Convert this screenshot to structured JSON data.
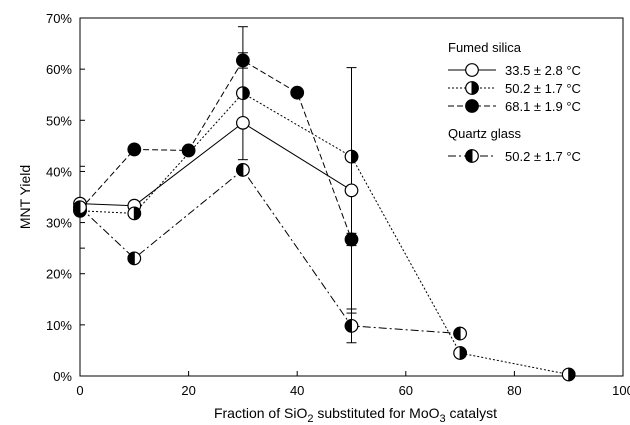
{
  "chart_data": {
    "type": "line",
    "xlabel_parts": [
      "Fraction of SiO",
      "2",
      " substituted for MoO",
      "3",
      " catalyst"
    ],
    "ylabel": "MNT Yield",
    "xlim": [
      0,
      100
    ],
    "ylim": [
      0,
      70
    ],
    "x_ticks": [
      0,
      20,
      40,
      60,
      80,
      100
    ],
    "x_tick_labels": [
      "0",
      "20",
      "40",
      "60",
      "80",
      "100"
    ],
    "y_ticks": [
      0,
      10,
      20,
      30,
      40,
      50,
      60,
      70
    ],
    "y_tick_labels": [
      "0%",
      "10%",
      "20%",
      "30%",
      "40%",
      "50%",
      "60%",
      "70%"
    ],
    "legend_groups": [
      {
        "title": "Fumed silica",
        "series": [
          0,
          1,
          2
        ]
      },
      {
        "title": "Quartz glass",
        "series": [
          3
        ]
      }
    ],
    "series": [
      {
        "name": "33.5 ± 2.8 °C",
        "marker": "open",
        "line_style": "solid",
        "x": [
          0,
          10,
          30,
          50
        ],
        "y": [
          33.7,
          33.3,
          49.5,
          36.3
        ],
        "err": [
          null,
          null,
          null,
          24
        ]
      },
      {
        "name": "50.2 ± 1.7 °C",
        "marker": "half-right",
        "line_style": "dotted",
        "x": [
          0,
          10,
          30,
          50,
          70,
          90
        ],
        "y": [
          32.3,
          31.8,
          55.3,
          42.9,
          4.5,
          0.3
        ],
        "err": [
          null,
          null,
          13,
          null,
          null,
          null
        ]
      },
      {
        "name": "68.1 ± 1.9 °C",
        "marker": "filled",
        "line_style": "dashed",
        "x": [
          0,
          10,
          20,
          30,
          40,
          50
        ],
        "y": [
          32.5,
          44.3,
          44.1,
          61.7,
          55.4,
          26.7
        ],
        "err": [
          null,
          null,
          null,
          1.5,
          null,
          1.2
        ]
      },
      {
        "name": "50.2 ± 1.7 °C",
        "marker": "half-left",
        "line_style": "dashdot",
        "x": [
          0,
          10,
          30,
          50,
          70
        ],
        "y": [
          33.0,
          23.0,
          40.3,
          9.8,
          8.3
        ],
        "err": [
          8,
          null,
          null,
          3.3,
          null
        ]
      }
    ]
  }
}
